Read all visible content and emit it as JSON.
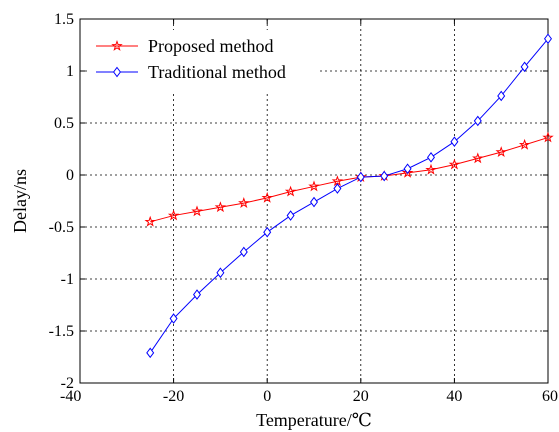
{
  "chart_data": {
    "type": "line",
    "xlabel": "Temperature/℃",
    "ylabel": "Delay/ns",
    "xlim": [
      -40,
      60
    ],
    "ylim": [
      -2,
      1.5
    ],
    "xticks": [
      -40,
      -20,
      0,
      20,
      40,
      60
    ],
    "yticks": [
      -2,
      -1.5,
      -1,
      -0.5,
      0,
      0.5,
      1,
      1.5
    ],
    "xtick_labels": [
      "-40",
      "-20",
      "0",
      "20",
      "40",
      "60"
    ],
    "ytick_labels": [
      "-2",
      "-1.5",
      "-1",
      "-0.5",
      "0",
      "0.5",
      "1",
      "1.5"
    ],
    "grid": true,
    "legend_position": "top-left",
    "x": [
      -25,
      -20,
      -15,
      -10,
      -5,
      0,
      5,
      10,
      15,
      20,
      25,
      30,
      35,
      40,
      45,
      50,
      55,
      60
    ],
    "series": [
      {
        "name": "Proposed method",
        "color": "#ff0000",
        "marker": "star",
        "values": [
          -0.45,
          -0.39,
          -0.35,
          -0.31,
          -0.27,
          -0.22,
          -0.16,
          -0.11,
          -0.06,
          -0.02,
          -0.01,
          0.02,
          0.05,
          0.1,
          0.16,
          0.22,
          0.29,
          0.36
        ]
      },
      {
        "name": "Traditional method",
        "color": "#0000ff",
        "marker": "diamond",
        "values": [
          -1.71,
          -1.38,
          -1.15,
          -0.94,
          -0.74,
          -0.55,
          -0.39,
          -0.26,
          -0.13,
          -0.02,
          -0.01,
          0.06,
          0.17,
          0.32,
          0.52,
          0.76,
          1.04,
          1.31
        ]
      }
    ]
  }
}
